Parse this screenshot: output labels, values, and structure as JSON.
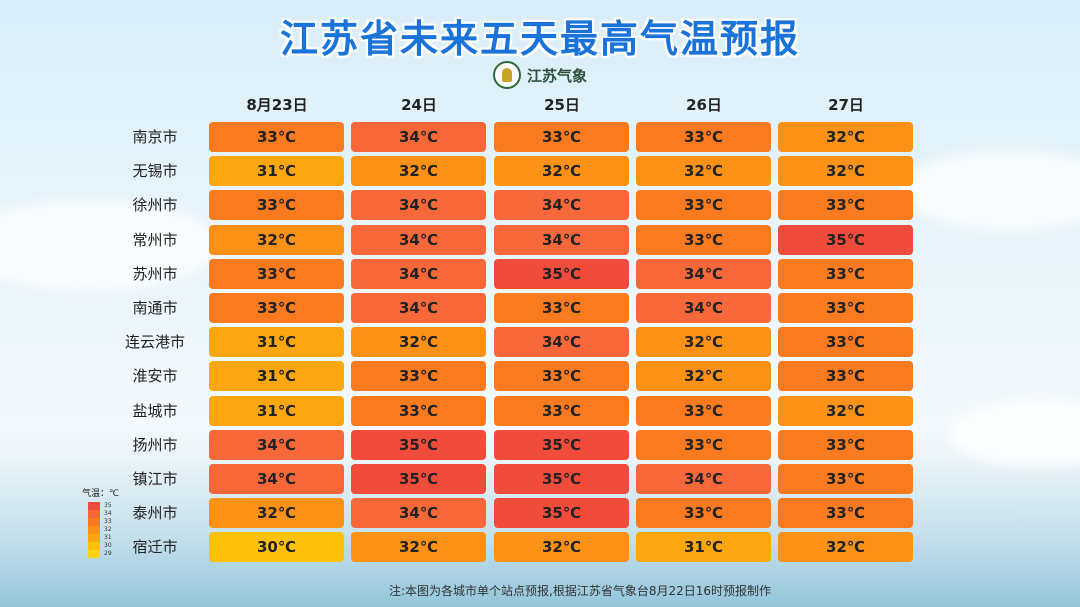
{
  "title": "江苏省未来五天最高气温预报",
  "logo": {
    "icon": "weather-bureau-emblem-icon",
    "text": "江苏气象"
  },
  "chart_data": {
    "type": "heatmap",
    "title": "江苏省未来五天最高气温预报",
    "days": [
      "8月23日",
      "24日",
      "25日",
      "26日",
      "27日"
    ],
    "cities": [
      "南京市",
      "无锡市",
      "徐州市",
      "常州市",
      "苏州市",
      "南通市",
      "连云港市",
      "淮安市",
      "盐城市",
      "扬州市",
      "镇江市",
      "泰州市",
      "宿迁市"
    ],
    "unit": "℃",
    "values": [
      [
        33,
        34,
        33,
        33,
        32
      ],
      [
        31,
        32,
        32,
        32,
        32
      ],
      [
        33,
        34,
        34,
        33,
        33
      ],
      [
        32,
        34,
        34,
        33,
        35
      ],
      [
        33,
        34,
        35,
        34,
        33
      ],
      [
        33,
        34,
        33,
        34,
        33
      ],
      [
        31,
        32,
        34,
        32,
        33
      ],
      [
        31,
        33,
        33,
        32,
        33
      ],
      [
        31,
        33,
        33,
        33,
        32
      ],
      [
        34,
        35,
        35,
        33,
        33
      ],
      [
        34,
        35,
        35,
        34,
        33
      ],
      [
        32,
        34,
        35,
        33,
        33
      ],
      [
        30,
        32,
        32,
        31,
        32
      ]
    ],
    "legend": {
      "title": "气温：℃",
      "levels": [
        35,
        34,
        33,
        32,
        31,
        30,
        29
      ]
    }
  },
  "colors": {
    "35": "#f04b3b",
    "34": "#f6673a",
    "33": "#fa7a1f",
    "32": "#fb9217",
    "31": "#fca610",
    "30": "#fdc10c",
    "29": "#fed415",
    "title": "#1a73d9"
  },
  "footnote": "注:本图为各城市单个站点预报,根据江苏省气象台8月22日16时预报制作"
}
